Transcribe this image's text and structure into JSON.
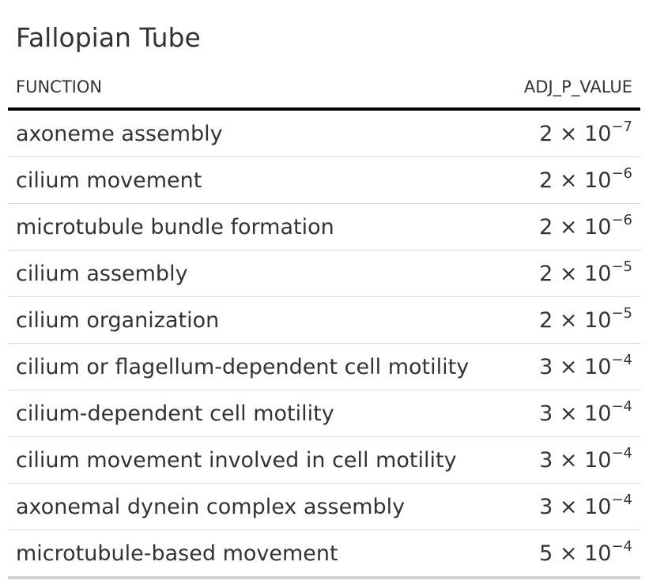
{
  "title": "Fallopian Tube",
  "columns": {
    "function": "FUNCTION",
    "pvalue": "ADJ_P_VALUE"
  },
  "rows": [
    {
      "function": "axoneme assembly",
      "mantissa": "2 × 10",
      "exponent": "−7"
    },
    {
      "function": "cilium movement",
      "mantissa": "2 × 10",
      "exponent": "−6"
    },
    {
      "function": "microtubule bundle formation",
      "mantissa": "2 × 10",
      "exponent": "−6"
    },
    {
      "function": "cilium assembly",
      "mantissa": "2 × 10",
      "exponent": "−5"
    },
    {
      "function": "cilium organization",
      "mantissa": "2 × 10",
      "exponent": "−5"
    },
    {
      "function": "cilium or flagellum-dependent cell motility",
      "mantissa": "3 × 10",
      "exponent": "−4"
    },
    {
      "function": "cilium-dependent cell motility",
      "mantissa": "3 × 10",
      "exponent": "−4"
    },
    {
      "function": "cilium movement involved in cell motility",
      "mantissa": "3 × 10",
      "exponent": "−4"
    },
    {
      "function": "axonemal dynein complex assembly",
      "mantissa": "3 × 10",
      "exponent": "−4"
    },
    {
      "function": "microtubule-based movement",
      "mantissa": "5 × 10",
      "exponent": "−4"
    }
  ]
}
